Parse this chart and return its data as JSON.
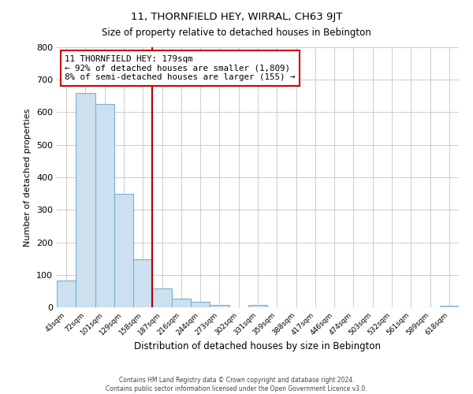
{
  "title": "11, THORNFIELD HEY, WIRRAL, CH63 9JT",
  "subtitle": "Size of property relative to detached houses in Bebington",
  "bar_labels": [
    "43sqm",
    "72sqm",
    "101sqm",
    "129sqm",
    "158sqm",
    "187sqm",
    "216sqm",
    "244sqm",
    "273sqm",
    "302sqm",
    "331sqm",
    "359sqm",
    "388sqm",
    "417sqm",
    "446sqm",
    "474sqm",
    "503sqm",
    "532sqm",
    "561sqm",
    "589sqm",
    "618sqm"
  ],
  "bar_values": [
    82,
    660,
    625,
    348,
    148,
    57,
    27,
    18,
    8,
    0,
    8,
    0,
    0,
    0,
    0,
    0,
    0,
    0,
    0,
    0,
    5
  ],
  "bar_color": "#cce0ef",
  "bar_edge_color": "#7ab0cc",
  "ylabel": "Number of detached properties",
  "xlabel": "Distribution of detached houses by size in Bebington",
  "ylim": [
    0,
    800
  ],
  "yticks": [
    0,
    100,
    200,
    300,
    400,
    500,
    600,
    700,
    800
  ],
  "vline_color": "#aa0000",
  "annotation_text": "11 THORNFIELD HEY: 179sqm\n← 92% of detached houses are smaller (1,809)\n8% of semi-detached houses are larger (155) →",
  "annotation_box_color": "#ffffff",
  "annotation_border_color": "#cc0000",
  "footer_line1": "Contains HM Land Registry data © Crown copyright and database right 2024.",
  "footer_line2": "Contains public sector information licensed under the Open Government Licence v3.0.",
  "background_color": "#ffffff",
  "grid_color": "#cccccc"
}
